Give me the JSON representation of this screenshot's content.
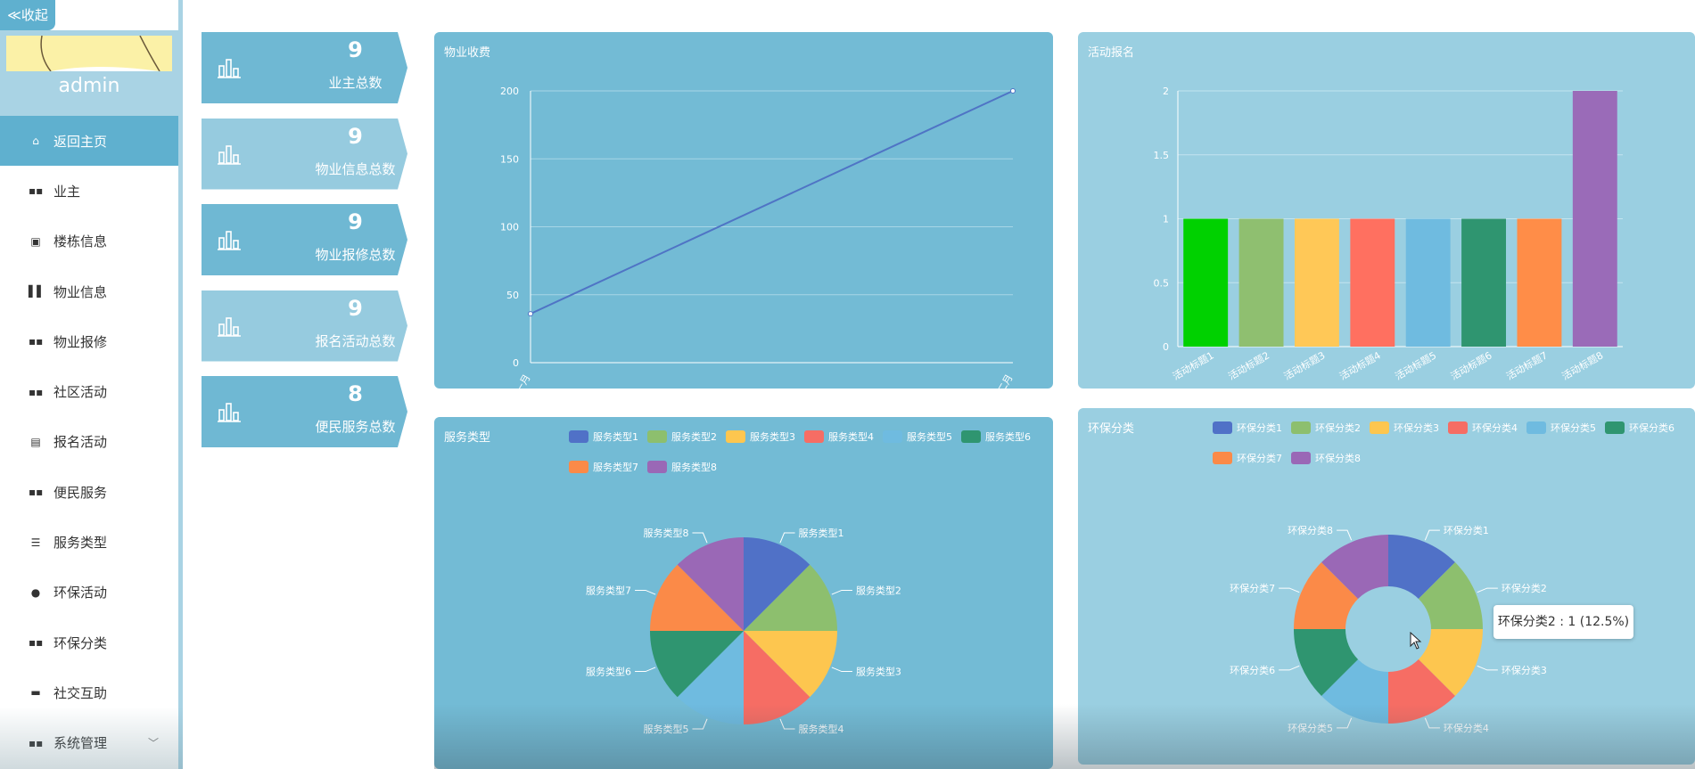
{
  "sidebar": {
    "collapse_label": "≪收起",
    "username": "admin",
    "items": [
      {
        "label": "返回主页",
        "icon": "home-icon",
        "glyph": "⌂"
      },
      {
        "label": "业主",
        "icon": "grid-icon",
        "glyph": "▪▪"
      },
      {
        "label": "楼栋信息",
        "icon": "clipboard-icon",
        "glyph": "▣"
      },
      {
        "label": "物业信息",
        "icon": "books-icon",
        "glyph": "▌▌"
      },
      {
        "label": "物业报修",
        "icon": "grid-icon",
        "glyph": "▪▪"
      },
      {
        "label": "社区活动",
        "icon": "grid-icon",
        "glyph": "▪▪"
      },
      {
        "label": "报名活动",
        "icon": "document-icon",
        "glyph": "▤"
      },
      {
        "label": "便民服务",
        "icon": "grid-icon",
        "glyph": "▪▪"
      },
      {
        "label": "服务类型",
        "icon": "list-icon",
        "glyph": "☰"
      },
      {
        "label": "环保活动",
        "icon": "bulb-icon",
        "glyph": "●"
      },
      {
        "label": "环保分类",
        "icon": "grid-icon",
        "glyph": "▪▪"
      },
      {
        "label": "社交互助",
        "icon": "chat-icon",
        "glyph": "▬"
      },
      {
        "label": "系统管理",
        "icon": "grid-icon",
        "glyph": "▪▪"
      }
    ]
  },
  "stats": [
    {
      "value": "9",
      "label": "业主总数"
    },
    {
      "value": "9",
      "label": "物业信息总数"
    },
    {
      "value": "9",
      "label": "物业报修总数"
    },
    {
      "value": "9",
      "label": "报名活动总数"
    },
    {
      "value": "8",
      "label": "便民服务总数"
    }
  ],
  "tooltip": "环保分类2 : 1 (12.5%)",
  "chart_data": [
    {
      "type": "line",
      "title": "物业收费",
      "x": [
        "一月",
        "二月"
      ],
      "values": [
        36,
        200
      ],
      "ylim": [
        0,
        200
      ],
      "yticks": [
        0,
        50,
        100,
        150,
        200
      ],
      "color": "#4f74c5",
      "grid": true
    },
    {
      "type": "bar",
      "title": "活动报名",
      "categories": [
        "活动标题1",
        "活动标题2",
        "活动标题3",
        "活动标题4",
        "活动标题5",
        "活动标题6",
        "活动标题7",
        "活动标题8"
      ],
      "values": [
        1,
        1,
        1,
        1,
        1,
        1,
        1,
        2
      ],
      "colors": [
        "#00d100",
        "#8fbf70",
        "#ffc857",
        "#ff7060",
        "#6fbbe0",
        "#2f9570",
        "#ff8d48",
        "#9a6bb8"
      ],
      "ylim": [
        0,
        2
      ],
      "yticks": [
        "0",
        "0.5",
        "1",
        "1.5",
        "2"
      ],
      "grid": true
    },
    {
      "type": "pie",
      "title": "服务类型",
      "labels": [
        "服务类型1",
        "服务类型2",
        "服务类型3",
        "服务类型4",
        "服务类型5",
        "服务类型6",
        "服务类型7",
        "服务类型8"
      ],
      "values": [
        1,
        1,
        1,
        1,
        1,
        1,
        1,
        1
      ],
      "colors": [
        "#5071c7",
        "#8dbf6e",
        "#fdc64f",
        "#f66d64",
        "#6fbbe0",
        "#2f9570",
        "#fb8a48",
        "#9a68b6"
      ],
      "legend": "top"
    },
    {
      "type": "pie",
      "title": "环保分类",
      "labels": [
        "环保分类1",
        "环保分类2",
        "环保分类3",
        "环保分类4",
        "环保分类5",
        "环保分类6",
        "环保分类7",
        "环保分类8"
      ],
      "values": [
        1,
        1,
        1,
        1,
        1,
        1,
        1,
        1
      ],
      "colors": [
        "#5071c7",
        "#8dbf6e",
        "#fdc64f",
        "#f66d64",
        "#6fbbe0",
        "#2f9570",
        "#fb8a48",
        "#9a68b6"
      ],
      "legend": "top",
      "donut": true
    }
  ]
}
